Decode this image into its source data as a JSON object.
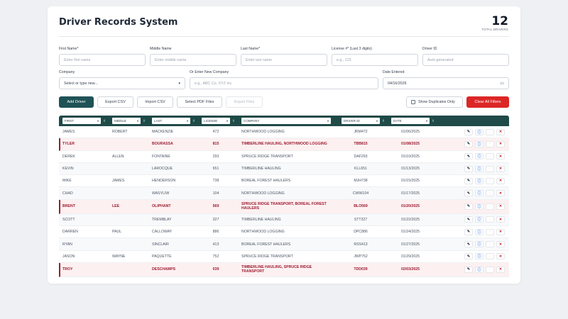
{
  "header": {
    "title": "Driver Records System",
    "total_count": "12",
    "total_label": "TOTAL DRIVERS"
  },
  "form": {
    "first_name": {
      "label": "First Name*",
      "placeholder": "Enter first name"
    },
    "middle_name": {
      "label": "Middle Name",
      "placeholder": "Enter middle name"
    },
    "last_name": {
      "label": "Last Name*",
      "placeholder": "Enter last name"
    },
    "license": {
      "label": "License #* (Last 3 digits)",
      "placeholder": "e.g., 123"
    },
    "driver_id": {
      "label": "Driver ID",
      "placeholder": "Auto-generated"
    },
    "company": {
      "label": "Company",
      "value": "Select or type new..."
    },
    "new_company": {
      "label": "Or Enter New Company",
      "placeholder": "e.g., ABC Co, XYZ Inc"
    },
    "date_entered": {
      "label": "Date Entered",
      "value": "04/16/2026"
    }
  },
  "toolbar": {
    "add_driver": "Add Driver",
    "export_csv": "Export CSV",
    "import_csv": "Import CSV",
    "select_pdf": "Select PDF Files",
    "import_files": "Import Files",
    "show_duplicates": "Show Duplicates Only",
    "clear_filters": "Clear All Filters"
  },
  "table": {
    "columns": [
      "FIRST",
      "MIDDLE",
      "LAST",
      "LICENSE",
      "COMPANY",
      "DRIVER ID",
      "DATE"
    ],
    "rows": [
      {
        "first": "JAMES",
        "middle": "ROBERT",
        "last": "MACKENZIE",
        "license": "472",
        "company": "NORTHWOOD LOGGING",
        "driver_id": "JRM472",
        "date": "01/06/2025",
        "duplicate": false
      },
      {
        "first": "TYLER",
        "middle": "",
        "last": "BOURASSA",
        "license": "815",
        "company": "TIMBERLINE HAULING, NORTHWOOD LOGGING",
        "driver_id": "TBB815",
        "date": "01/08/2025",
        "duplicate": true
      },
      {
        "first": "DEREK",
        "middle": "ALLEN",
        "last": "FONTAINE",
        "license": "293",
        "company": "SPRUCE RIDGE TRANSPORT",
        "driver_id": "DAF293",
        "date": "01/10/2025",
        "duplicate": false
      },
      {
        "first": "KEVIN",
        "middle": "",
        "last": "LAROCQUE",
        "license": "651",
        "company": "TIMBERLINE HAULING",
        "driver_id": "KLL651",
        "date": "01/13/2025",
        "duplicate": false
      },
      {
        "first": "MIKE",
        "middle": "JAMES",
        "last": "HENDERSON",
        "license": "738",
        "company": "BOREAL FOREST HAULERS",
        "driver_id": "MJH738",
        "date": "01/15/2025",
        "duplicate": false
      },
      {
        "first": "CHAD",
        "middle": "",
        "last": "WASYLIW",
        "license": "104",
        "company": "NORTHWOOD LOGGING",
        "driver_id": "CWW104",
        "date": "01/17/2025",
        "duplicate": false
      },
      {
        "first": "BRENT",
        "middle": "LEE",
        "last": "OLIPHANT",
        "license": "569",
        "company": "SPRUCE RIDGE TRANSPORT, BOREAL FOREST HAULERS",
        "driver_id": "BLO569",
        "date": "01/20/2025",
        "duplicate": true
      },
      {
        "first": "SCOTT",
        "middle": "",
        "last": "TREMBLAY",
        "license": "327",
        "company": "TIMBERLINE HAULING",
        "driver_id": "STT327",
        "date": "01/22/2025",
        "duplicate": false
      },
      {
        "first": "DARREN",
        "middle": "PAUL",
        "last": "CALLOWAY",
        "license": "886",
        "company": "NORTHWOOD LOGGING",
        "driver_id": "DPC886",
        "date": "01/24/2025",
        "duplicate": false
      },
      {
        "first": "RYAN",
        "middle": "",
        "last": "SINCLAIR",
        "license": "413",
        "company": "BOREAL FOREST HAULERS",
        "driver_id": "RSS413",
        "date": "01/27/2025",
        "duplicate": false
      },
      {
        "first": "JASON",
        "middle": "WAYNE",
        "last": "PAQUETTE",
        "license": "752",
        "company": "SPRUCE RIDGE TRANSPORT",
        "driver_id": "JWP752",
        "date": "01/29/2025",
        "duplicate": false
      },
      {
        "first": "TROY",
        "middle": "",
        "last": "DESCHAMPS",
        "license": "039",
        "company": "TIMBERLINE HAULING, SPRUCE RIDGE TRANSPORT",
        "driver_id": "TDD039",
        "date": "02/03/2025",
        "duplicate": true
      }
    ],
    "action_icons": {
      "edit": "✎",
      "info": "ⓘ",
      "disabled": "▫",
      "delete": "✕"
    }
  },
  "colors": {
    "primary": "#1f5256",
    "header_bg": "#1f4a48",
    "danger": "#dc2626",
    "duplicate_text": "#9b1c31",
    "duplicate_bg": "#fdf0f1"
  }
}
